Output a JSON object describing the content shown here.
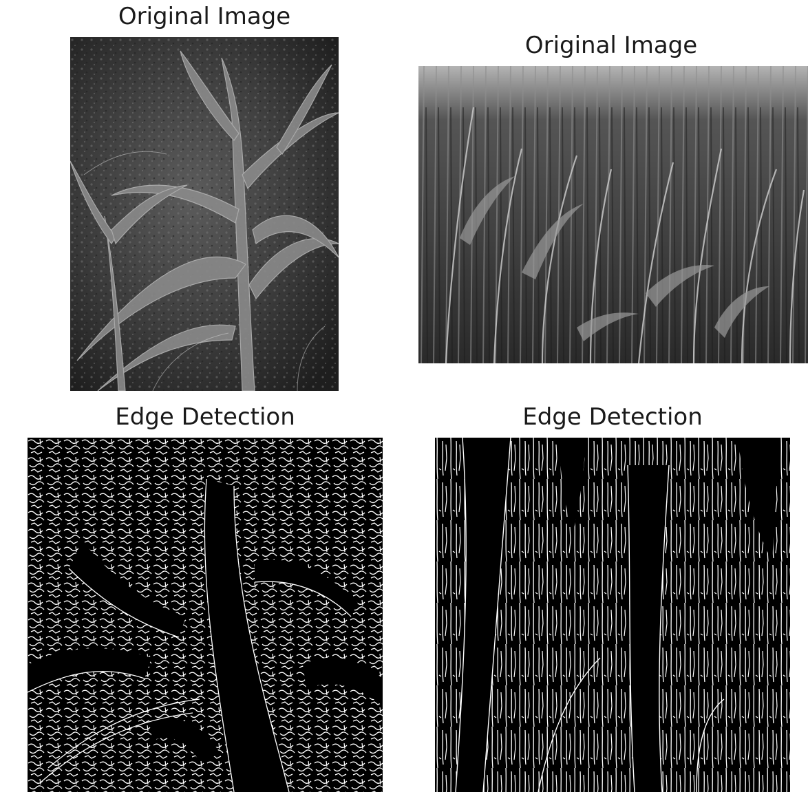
{
  "figure": {
    "panels": [
      {
        "id": "orig-1",
        "title": "Original Image",
        "kind": "grayscale-photo",
        "subject": "young maize plants"
      },
      {
        "id": "orig-2",
        "title": "Original Image",
        "kind": "grayscale-photo",
        "subject": "dense tall grass/sorghum stalks"
      },
      {
        "id": "edge-1",
        "title": "Edge Detection",
        "kind": "edge-map"
      },
      {
        "id": "edge-2",
        "title": "Edge Detection",
        "kind": "edge-map"
      }
    ]
  }
}
